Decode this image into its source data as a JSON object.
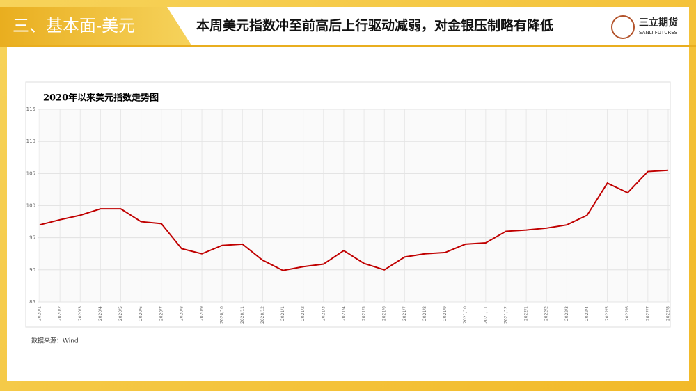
{
  "header": {
    "section": "三、基本面-美元",
    "headline": "本周美元指数冲至前高后上行驱动减弱，对金银压制略有降低",
    "logo_name": "三立期货",
    "logo_sub": "SANLI FUTURES"
  },
  "chart_data": {
    "type": "line",
    "title": "2020年以来美元指数走势图",
    "categories": [
      "2020/1",
      "2020/2",
      "2020/3",
      "2020/4",
      "2020/5",
      "2020/6",
      "2020/7",
      "2020/8",
      "2020/9",
      "2020/10",
      "2020/11",
      "2020/12",
      "2021/1",
      "2021/2",
      "2021/3",
      "2021/4",
      "2021/5",
      "2021/6",
      "2021/7",
      "2021/8",
      "2021/9",
      "2021/10",
      "2021/11",
      "2021/12",
      "2022/1",
      "2022/2",
      "2022/3",
      "2022/4",
      "2022/5",
      "2022/6",
      "2022/7",
      "2022/8"
    ],
    "series": [
      {
        "name": "美元指数",
        "color": "#c00000",
        "values": [
          97,
          97.8,
          98.5,
          99.5,
          99.5,
          97.5,
          97.2,
          93.3,
          92.5,
          93.8,
          94,
          91.5,
          89.9,
          90.5,
          90.9,
          93,
          91,
          90,
          92,
          92.5,
          92.7,
          94,
          94.2,
          96,
          96.2,
          96.5,
          97,
          98.5,
          103.5,
          102,
          105.3,
          105.5
        ]
      }
    ],
    "ylim": [
      85,
      115
    ],
    "yticks": [
      85,
      90,
      95,
      100,
      105,
      110,
      115
    ],
    "grid": true
  },
  "source": "数据来源：Wind"
}
